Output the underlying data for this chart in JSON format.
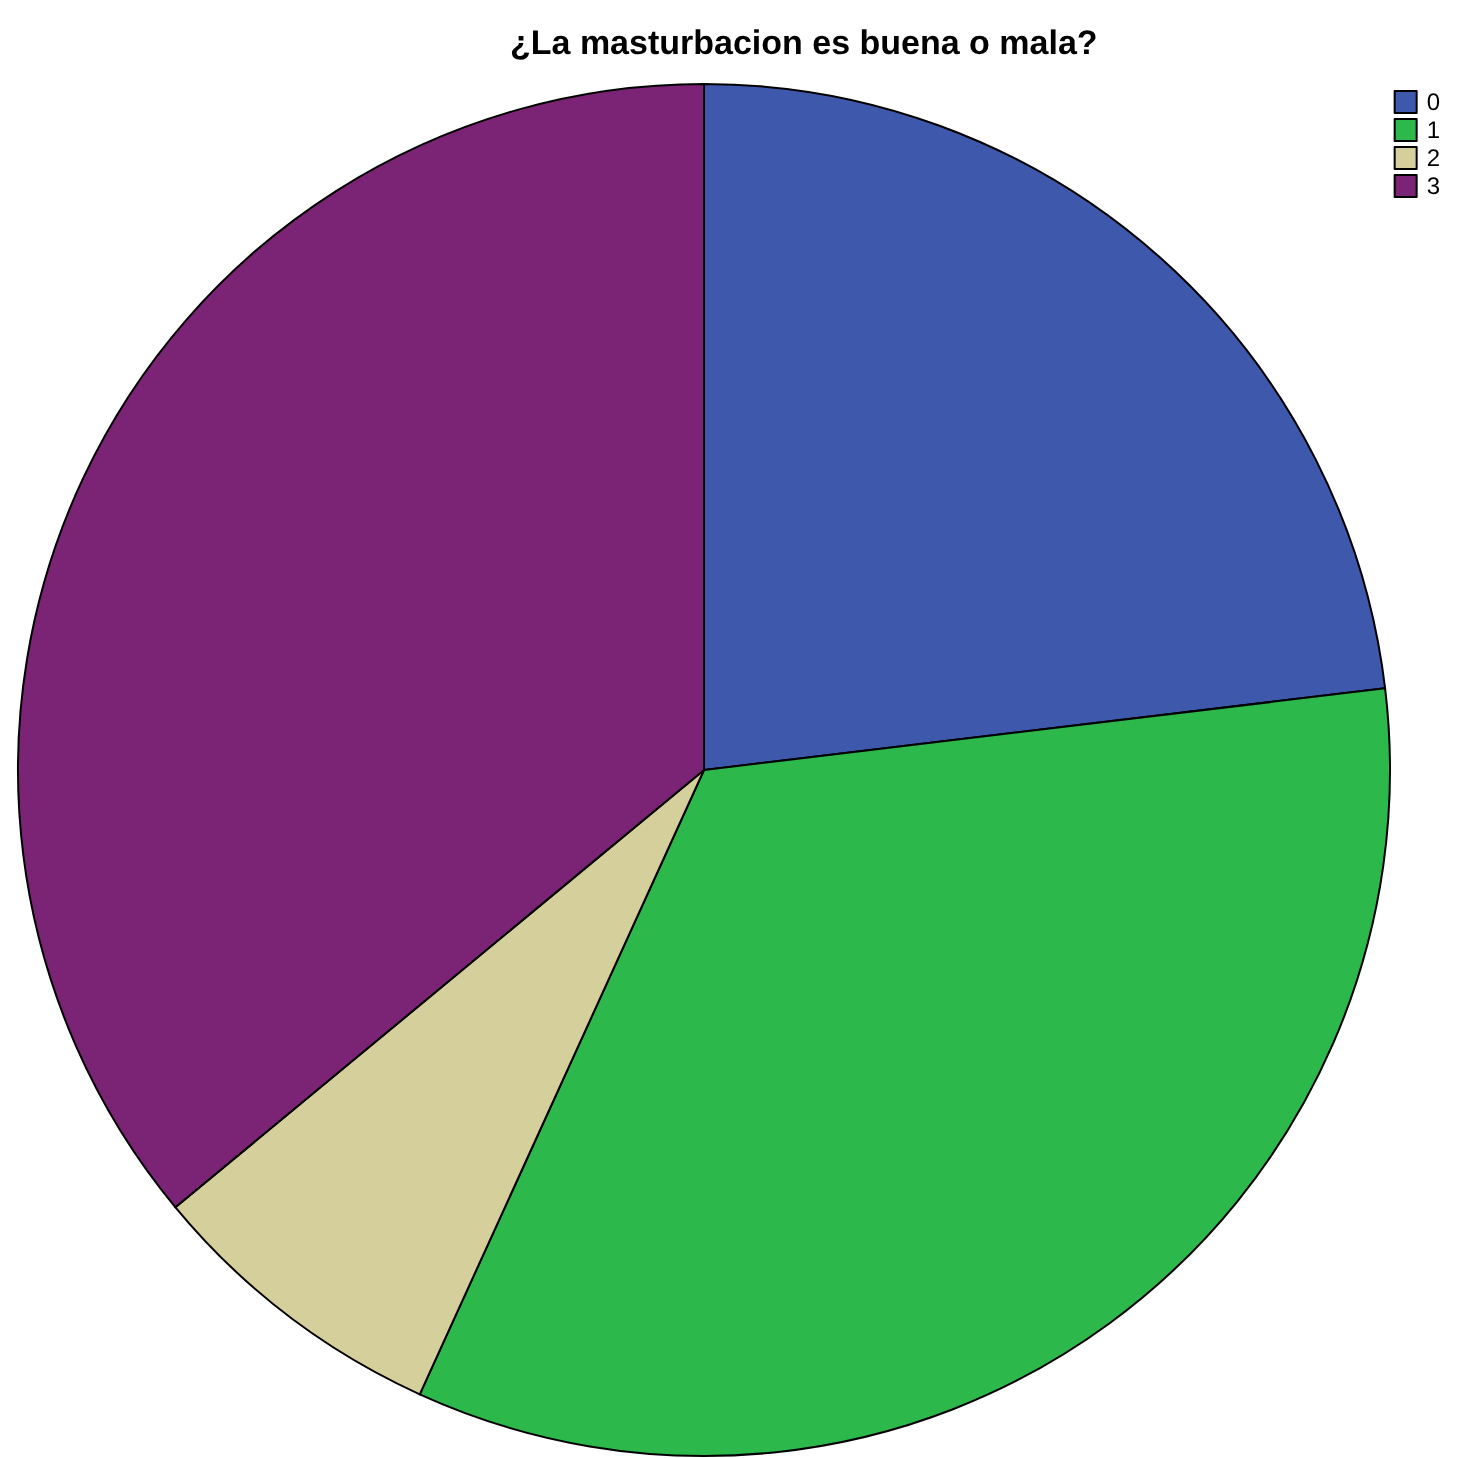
{
  "chart_data": {
    "type": "pie",
    "title": "¿La masturbacion es buena o mala?",
    "categories": [
      "0",
      "1",
      "2",
      "3"
    ],
    "values": [
      23.1,
      33.7,
      7.2,
      36.0
    ],
    "colors": [
      "#3e58ac",
      "#2db84b",
      "#d4cf9b",
      "#7b2475"
    ],
    "legend": "top right"
  }
}
